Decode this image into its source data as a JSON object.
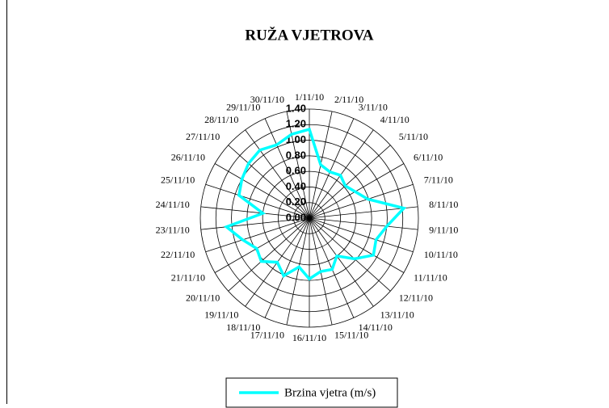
{
  "chart_data": {
    "type": "radar",
    "title": "RUŽA VJETROVA",
    "categories": [
      "1/11/10",
      "2/11/10",
      "3/11/10",
      "4/11/10",
      "5/11/10",
      "6/11/10",
      "7/11/10",
      "8/11/10",
      "9/11/10",
      "10/11/10",
      "11/11/10",
      "12/11/10",
      "13/11/10",
      "14/11/10",
      "15/11/10",
      "16/11/10",
      "17/11/10",
      "18/11/10",
      "19/11/10",
      "20/11/10",
      "21/11/10",
      "22/11/10",
      "23/11/10",
      "24/11/10",
      "25/11/10",
      "26/11/10",
      "27/11/10",
      "28/11/10",
      "29/11/10",
      "30/11/10"
    ],
    "series": [
      {
        "name": "Brzina vjetra (m/s)",
        "color": "#00ffff",
        "values": [
          1.14,
          0.7,
          0.65,
          0.68,
          0.62,
          0.68,
          0.79,
          1.22,
          1.0,
          0.9,
          0.95,
          0.78,
          0.6,
          0.72,
          0.7,
          0.78,
          0.64,
          0.81,
          0.7,
          0.83,
          0.78,
          0.9,
          1.07,
          0.6,
          0.95,
          1.0,
          1.05,
          1.08,
          1.03,
          1.1
        ]
      }
    ],
    "ylim": [
      0,
      1.4
    ],
    "yticks": [
      {
        "value": 0,
        "label": "0.00"
      },
      {
        "value": 0.2,
        "label": "0.20"
      },
      {
        "value": 0.4,
        "label": "0.40"
      },
      {
        "value": 0.6,
        "label": "0.60"
      },
      {
        "value": 0.8,
        "label": "0.80"
      },
      {
        "value": 1,
        "label": "1.00"
      },
      {
        "value": 1.2,
        "label": "1.20"
      },
      {
        "value": 1.4,
        "label": "1.40"
      }
    ],
    "grid": true,
    "legend": "bottom"
  }
}
